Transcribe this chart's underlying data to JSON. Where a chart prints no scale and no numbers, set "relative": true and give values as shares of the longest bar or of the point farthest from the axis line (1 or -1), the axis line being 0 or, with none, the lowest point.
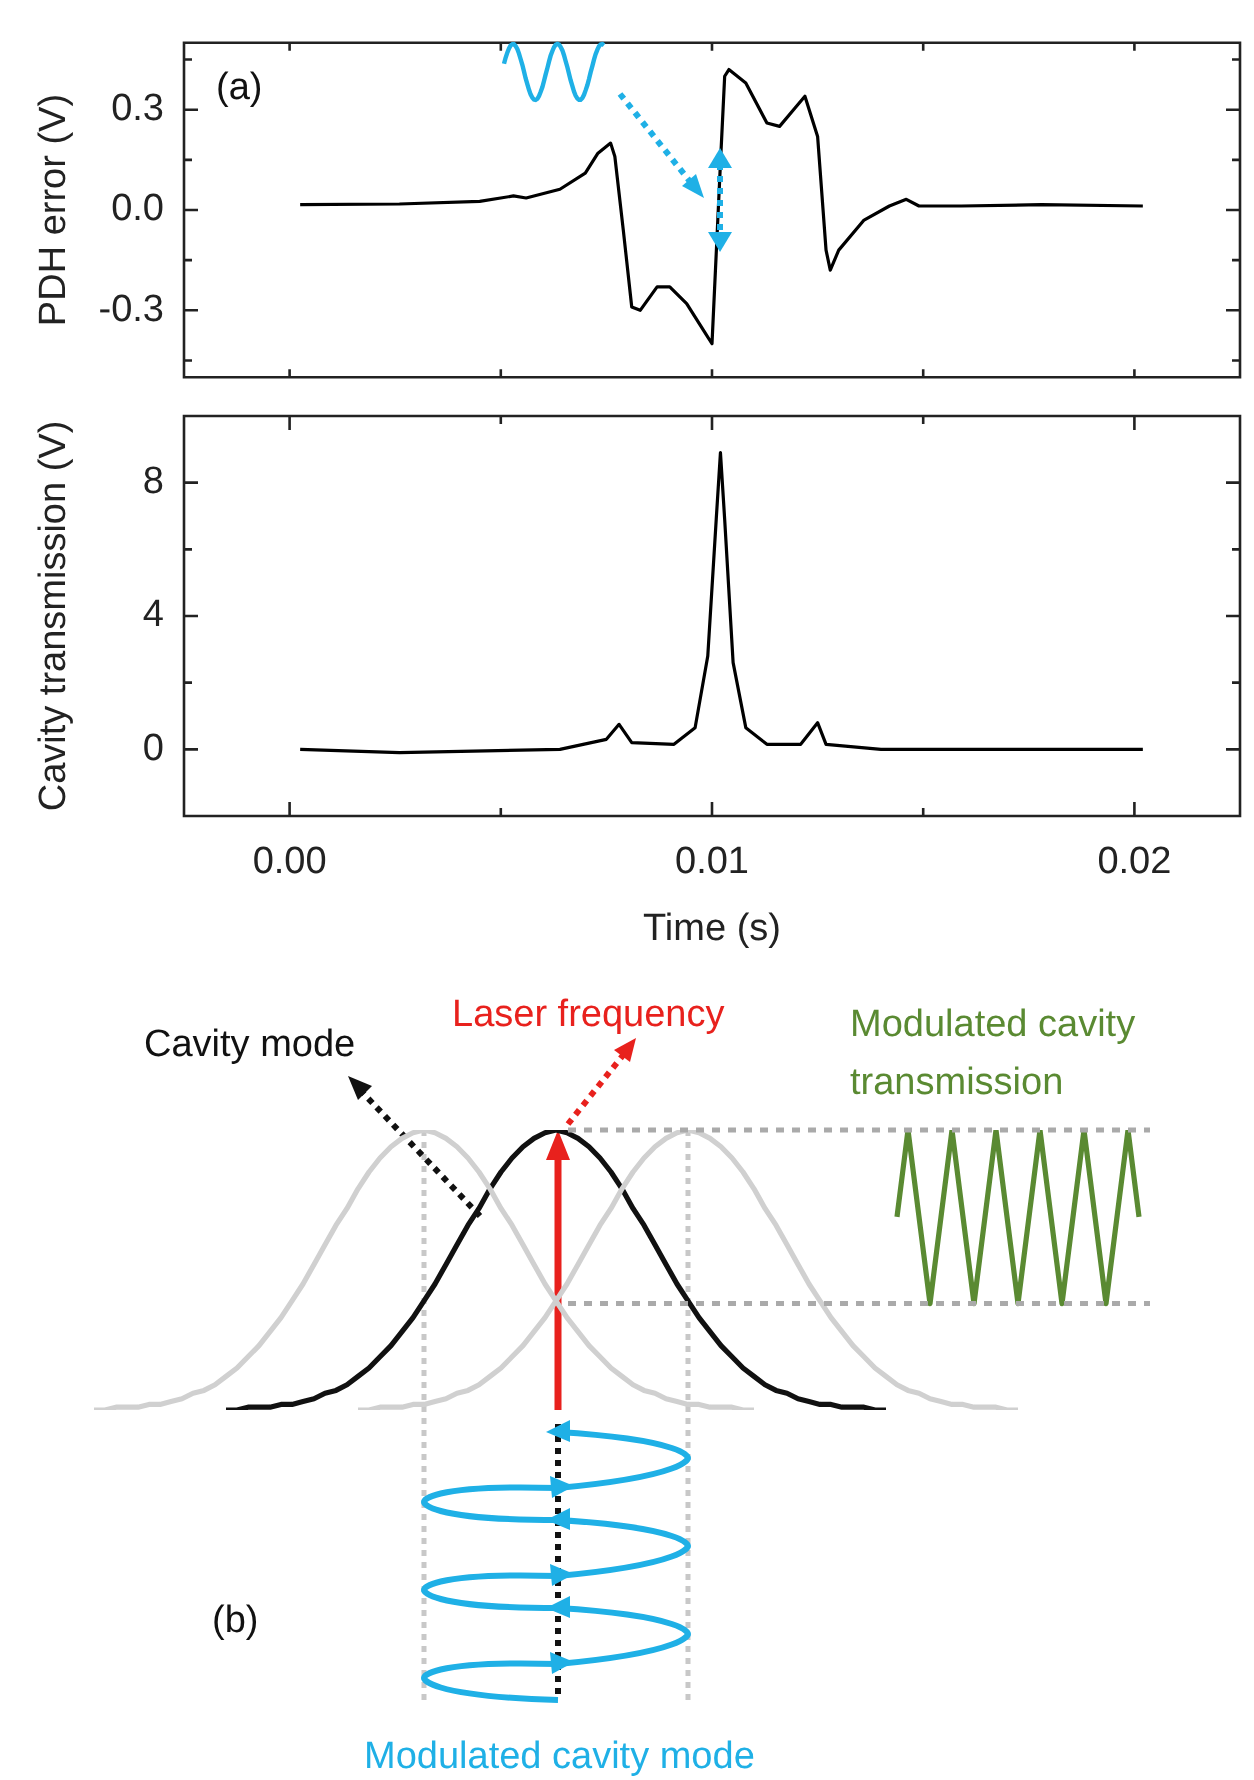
{
  "chart_data": [
    {
      "type": "line",
      "ylabel": "PDH error (V)",
      "color": "#000000",
      "annotations": [
        "(a)"
      ],
      "tick_labels": "y",
      "x": [
        0.00025,
        0.0026,
        0.0045,
        0.0053,
        0.0056,
        0.0064,
        0.007,
        0.0073,
        0.0076,
        0.0077,
        0.0079,
        0.0081,
        0.0083,
        0.0087,
        0.009,
        0.0094,
        0.0098,
        0.01,
        0.0102,
        0.0103,
        0.0104,
        0.0108,
        0.0113,
        0.0116,
        0.012,
        0.0122,
        0.0125,
        0.0127,
        0.0128,
        0.013,
        0.0136,
        0.0142,
        0.0146,
        0.0149,
        0.0159,
        0.0178,
        0.0202
      ],
      "values": [
        0.016,
        0.018,
        0.026,
        0.042,
        0.036,
        0.062,
        0.11,
        0.17,
        0.2,
        0.16,
        -0.06,
        -0.29,
        -0.3,
        -0.23,
        -0.23,
        -0.28,
        -0.36,
        -0.4,
        0.14,
        0.4,
        0.42,
        0.38,
        0.26,
        0.25,
        0.31,
        0.34,
        0.22,
        -0.12,
        -0.18,
        -0.12,
        -0.03,
        0.012,
        0.032,
        0.012,
        0.012,
        0.016,
        0.012
      ],
      "xlim": [
        -0.0025,
        0.0225
      ],
      "xticks": [
        {
          "value": 0,
          "label": null
        },
        {
          "value": 0.005,
          "label": null
        },
        {
          "value": 0.01,
          "label": null
        },
        {
          "value": 0.015,
          "label": null
        },
        {
          "value": 0.02,
          "label": null
        }
      ],
      "ylim": [
        -0.5,
        0.5
      ],
      "yticks": [
        {
          "value": -0.45,
          "label": null
        },
        {
          "value": -0.3,
          "label": "-0.3"
        },
        {
          "value": -0.15,
          "label": null
        },
        {
          "value": 0,
          "label": "0.0"
        },
        {
          "value": 0.15,
          "label": null
        },
        0.3,
        {
          "value": 0.45,
          "label": null
        }
      ]
    },
    {
      "type": "line",
      "xlabel": "Time (s)",
      "ylabel": "Cavity transmission (V)",
      "color": "#000000",
      "x": [
        0.00025,
        0.0026,
        0.0064,
        0.0075,
        0.0078,
        0.0081,
        0.0091,
        0.0096,
        0.0099,
        0.0101,
        0.0102,
        0.0103,
        0.0105,
        0.0108,
        0.0113,
        0.0121,
        0.0125,
        0.0127,
        0.014,
        0.0202
      ],
      "values": [
        0,
        -0.1,
        0,
        0.3,
        0.75,
        0.2,
        0.15,
        0.65,
        2.8,
        6.9,
        8.9,
        6.9,
        2.6,
        0.65,
        0.15,
        0.15,
        0.8,
        0.15,
        0,
        0
      ],
      "xlim": [
        -0.0025,
        0.0225
      ],
      "xticks": [
        {
          "value": 0,
          "label": "0.00"
        },
        {
          "value": 0.005,
          "label": null
        },
        0.01,
        {
          "value": 0.015,
          "label": null
        },
        0.02
      ],
      "ylim": [
        -2,
        10
      ],
      "yticks": [
        0,
        {
          "value": 2,
          "label": null
        },
        4,
        {
          "value": 6,
          "label": null
        },
        8
      ]
    },
    {
      "type": "line",
      "relative": true,
      "annotations": [
        "Cavity mode",
        "Laser frequency",
        "Modulated cavity transmission",
        "(b)",
        "Modulated cavity mode"
      ],
      "categories": [
        null,
        null,
        null,
        null,
        null,
        null,
        null,
        null,
        null,
        null,
        null,
        null,
        null,
        null,
        null,
        null,
        null,
        null,
        null,
        null,
        null,
        null,
        null,
        null,
        null,
        null,
        null,
        null,
        null,
        null,
        null,
        null,
        null,
        null,
        null,
        null,
        null,
        null,
        null,
        null,
        null,
        null,
        null,
        null,
        null,
        null,
        null,
        null,
        null,
        null,
        null,
        null,
        null,
        null,
        null,
        null,
        null,
        null,
        null,
        null,
        null,
        null,
        null,
        null,
        null,
        null,
        null,
        null,
        null,
        null,
        null,
        null,
        null,
        null,
        null,
        null,
        null,
        null,
        null,
        null,
        null,
        null,
        null,
        null,
        null,
        null,
        null,
        null,
        null,
        null,
        null,
        null,
        null,
        null,
        null,
        null,
        null
      ],
      "ref_lines": [
        {
          "axis": "y",
          "value": 1,
          "color": "#aaaaaa",
          "line_style": "dotted"
        },
        {
          "axis": "y",
          "value": 0.38,
          "color": "#aaaaaa",
          "line_style": "dotted"
        }
      ],
      "series": [
        {
          "color": "#d0d0d0",
          "values": [
            0,
            0,
            0.01,
            0.01,
            0.01,
            0.02,
            0.02,
            0.03,
            0.04,
            0.06,
            0.07,
            0.09,
            0.12,
            0.15,
            0.19,
            0.23,
            0.28,
            0.33,
            0.39,
            0.45,
            0.52,
            0.59,
            0.66,
            0.72,
            0.79,
            0.85,
            0.9,
            0.94,
            0.97,
            0.99,
            1,
            0.99,
            0.97,
            0.94,
            0.9,
            0.85,
            0.79,
            0.72,
            0.66,
            0.59,
            0.52,
            0.45,
            0.39,
            0.33,
            0.28,
            0.23,
            0.19,
            0.15,
            0.12,
            0.09,
            0.07,
            0.06,
            0.04,
            0.03,
            0.02,
            0.02,
            0.01,
            0.01,
            0.01,
            0,
            0,
            null,
            null,
            null,
            null,
            null,
            null,
            null,
            null,
            null,
            null,
            null,
            null,
            null,
            null,
            null,
            null,
            null,
            null,
            null,
            null,
            null,
            null,
            null,
            null,
            null,
            null,
            null,
            null,
            null,
            null,
            null,
            null,
            null,
            null,
            null,
            null
          ]
        },
        {
          "color": "#d0d0d0",
          "values": [
            null,
            null,
            null,
            null,
            null,
            null,
            null,
            null,
            null,
            null,
            null,
            null,
            null,
            null,
            null,
            null,
            null,
            null,
            null,
            null,
            null,
            null,
            null,
            null,
            0,
            0,
            0.01,
            0.01,
            0.01,
            0.02,
            0.02,
            0.03,
            0.04,
            0.06,
            0.07,
            0.09,
            0.12,
            0.15,
            0.19,
            0.23,
            0.28,
            0.33,
            0.39,
            0.45,
            0.52,
            0.59,
            0.66,
            0.72,
            0.79,
            0.85,
            0.9,
            0.94,
            0.97,
            0.99,
            1,
            0.99,
            0.97,
            0.94,
            0.9,
            0.85,
            0.79,
            0.72,
            0.66,
            0.59,
            0.52,
            0.45,
            0.39,
            0.33,
            0.28,
            0.23,
            0.19,
            0.15,
            0.12,
            0.09,
            0.07,
            0.06,
            0.04,
            0.03,
            0.02,
            0.02,
            0.01,
            0.01,
            0.01,
            0,
            0,
            null,
            null,
            null,
            null,
            null,
            null,
            null,
            null,
            null,
            null,
            null,
            null
          ]
        },
        {
          "color": "#111111",
          "values": [
            null,
            null,
            null,
            null,
            null,
            null,
            null,
            null,
            null,
            null,
            null,
            null,
            0,
            0,
            0.01,
            0.01,
            0.01,
            0.02,
            0.02,
            0.03,
            0.04,
            0.06,
            0.07,
            0.09,
            0.12,
            0.15,
            0.19,
            0.23,
            0.28,
            0.33,
            0.39,
            0.45,
            0.52,
            0.59,
            0.66,
            0.72,
            0.79,
            0.85,
            0.9,
            0.94,
            0.97,
            0.99,
            1,
            0.99,
            0.97,
            0.94,
            0.9,
            0.85,
            0.79,
            0.72,
            0.66,
            0.59,
            0.52,
            0.45,
            0.39,
            0.33,
            0.28,
            0.23,
            0.19,
            0.15,
            0.12,
            0.09,
            0.07,
            0.06,
            0.04,
            0.03,
            0.02,
            0.02,
            0.01,
            0.01,
            0.01,
            0,
            0,
            null,
            null,
            null,
            null,
            null,
            null,
            null,
            null,
            null,
            null,
            null,
            null,
            null,
            null,
            null,
            null,
            null,
            null,
            null,
            null,
            null,
            null,
            null,
            null
          ]
        },
        {
          "color": "#5a8a32",
          "values": [
            null,
            null,
            null,
            null,
            null,
            null,
            null,
            null,
            null,
            null,
            null,
            null,
            null,
            null,
            null,
            null,
            null,
            null,
            null,
            null,
            null,
            null,
            null,
            null,
            null,
            null,
            null,
            null,
            null,
            null,
            null,
            null,
            null,
            null,
            null,
            null,
            null,
            null,
            null,
            null,
            null,
            null,
            null,
            null,
            null,
            null,
            null,
            null,
            null,
            null,
            null,
            null,
            null,
            null,
            null,
            null,
            null,
            null,
            null,
            null,
            null,
            null,
            null,
            null,
            null,
            null,
            null,
            null,
            null,
            null,
            null,
            null,
            null,
            0.69,
            1,
            0.69,
            0.38,
            0.69,
            1,
            0.69,
            0.38,
            0.69,
            1,
            0.69,
            0.38,
            0.69,
            1,
            0.69,
            0.38,
            0.69,
            1,
            0.69,
            0.38,
            0.69,
            1,
            0.69,
            null
          ]
        }
      ]
    }
  ]
}
